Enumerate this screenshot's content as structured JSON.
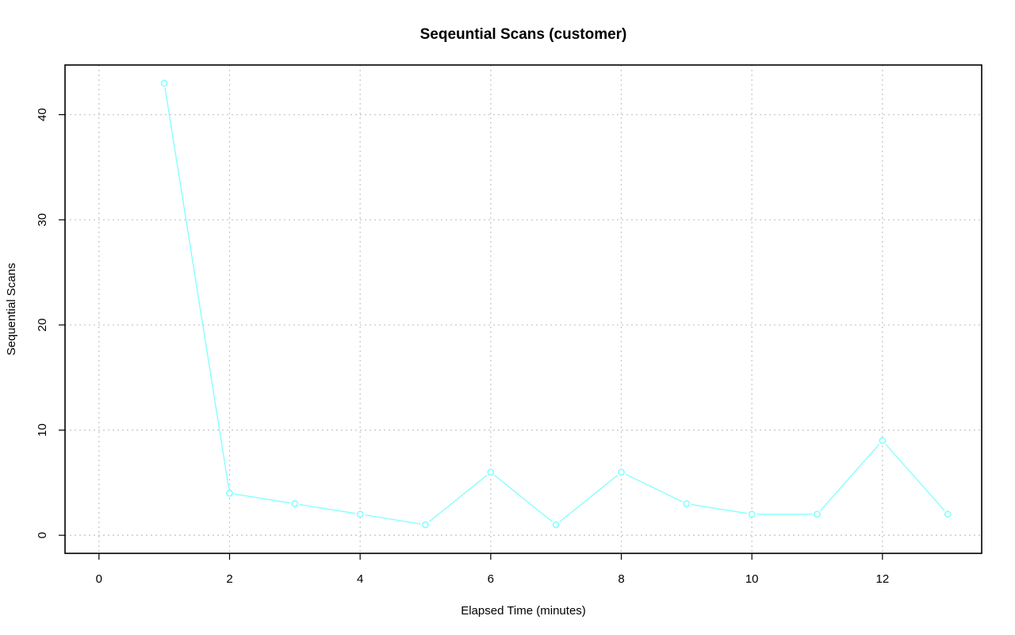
{
  "chart_data": {
    "type": "line",
    "title": "Seqeuntial Scans (customer)",
    "xlabel": "Elapsed Time (minutes)",
    "ylabel": "Sequential Scans",
    "xlim": [
      -0.52,
      13.52
    ],
    "ylim": [
      -1.72,
      44.72
    ],
    "xticks": [
      0,
      2,
      4,
      6,
      8,
      10,
      12
    ],
    "yticks": [
      0,
      10,
      20,
      30,
      40
    ],
    "grid": true,
    "colors": {
      "series": "#7fffff",
      "frame": "#000000",
      "grid": "#c8c8c8"
    },
    "series": [
      {
        "x": [
          1,
          2,
          3,
          4,
          5,
          6,
          7,
          8,
          9,
          10,
          11,
          12,
          13
        ],
        "y": [
          43,
          4,
          3,
          2,
          1,
          6,
          1,
          6,
          3,
          2,
          2,
          9,
          2
        ]
      }
    ]
  }
}
